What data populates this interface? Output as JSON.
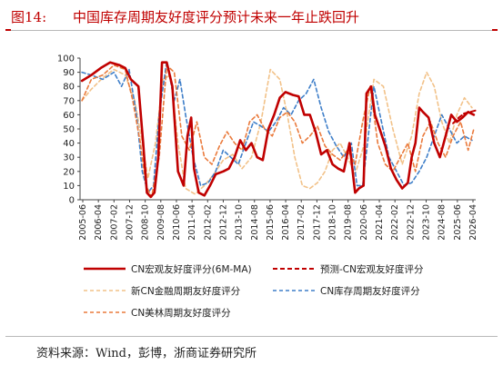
{
  "header": {
    "label": "图14:",
    "title": "中国库存周期友好度评分预计未来一年止跌回升"
  },
  "footer": {
    "source": "资料来源：Wind，彭博，浙商证券研究所"
  },
  "colors": {
    "accent": "#c00000",
    "rule": "#b8b8b8"
  },
  "chart_data": {
    "type": "line",
    "title": "",
    "xlabel": "",
    "ylabel": "",
    "ylim": [
      0,
      100
    ],
    "y_ticks": [
      0,
      10,
      20,
      30,
      40,
      50,
      60,
      70,
      80,
      90,
      100
    ],
    "x_tick_labels": [
      "2005-06",
      "2006-04",
      "2007-02",
      "2007-12",
      "2008-10",
      "2009-08",
      "2010-06",
      "2011-04",
      "2012-02",
      "2012-12",
      "2013-10",
      "2014-08",
      "2015-06",
      "2016-04",
      "2017-02",
      "2017-12",
      "2018-10",
      "2019-08",
      "2020-06",
      "2021-04",
      "2022-02",
      "2022-12",
      "2023-10",
      "2024-08",
      "2025-06",
      "2026-04"
    ],
    "grid": false,
    "legend_position": "bottom",
    "series": [
      {
        "name": "CN宏观友好度评分(6M-MA)",
        "color": "#c00000",
        "style": "solid",
        "width": 2.6,
        "x": [
          2005.5,
          2006.0,
          2006.5,
          2007.0,
          2007.5,
          2007.8,
          2008.1,
          2008.5,
          2008.75,
          2008.95,
          2009.15,
          2009.35,
          2009.55,
          2009.75,
          2010.0,
          2010.3,
          2010.6,
          2010.9,
          2011.1,
          2011.3,
          2011.45,
          2011.7,
          2012.0,
          2012.3,
          2012.6,
          2013.0,
          2013.3,
          2013.6,
          2013.9,
          2014.2,
          2014.5,
          2014.8,
          2015.1,
          2015.4,
          2015.7,
          2016.0,
          2016.3,
          2016.7,
          2017.0,
          2017.3,
          2017.6,
          2017.9,
          2018.2,
          2018.5,
          2018.8,
          2019.1,
          2019.4,
          2019.7,
          2020.0,
          2020.2,
          2020.45,
          2020.6,
          2020.85,
          2021.05,
          2021.3,
          2021.6,
          2021.9,
          2022.2,
          2022.5,
          2022.8,
          2023.0,
          2023.2,
          2023.4,
          2023.6,
          2023.9,
          2024.2,
          2024.5,
          2024.8,
          2025.1,
          2025.4,
          2025.7,
          2026.0,
          2026.3
        ],
        "y": [
          84,
          88,
          93,
          97,
          95,
          93,
          85,
          80,
          40,
          5,
          2,
          5,
          30,
          97,
          97,
          80,
          20,
          10,
          45,
          58,
          22,
          5,
          3,
          10,
          18,
          20,
          22,
          30,
          42,
          35,
          40,
          30,
          28,
          50,
          60,
          72,
          76,
          74,
          73,
          60,
          60,
          48,
          32,
          35,
          25,
          22,
          20,
          40,
          5,
          8,
          10,
          75,
          80,
          60,
          50,
          38,
          22,
          14,
          8,
          12,
          30,
          40,
          65,
          62,
          58,
          40,
          30,
          45,
          60,
          55,
          58,
          62,
          60
        ]
      },
      {
        "name": "预测-CN宏观友好度评分",
        "color": "#c00000",
        "style": "dashed",
        "width": 2.0,
        "x": [
          2025.2,
          2025.5,
          2025.8,
          2026.1,
          2026.4
        ],
        "y": [
          54,
          58,
          61,
          62,
          63
        ]
      },
      {
        "name": "新CN金融周期友好度评分",
        "color": "#f2c289",
        "style": "dashed",
        "width": 1.6,
        "x": [
          2005.5,
          2006.0,
          2006.6,
          2007.2,
          2007.8,
          2008.3,
          2008.7,
          2009.0,
          2009.4,
          2009.8,
          2010.2,
          2010.6,
          2011.0,
          2011.5,
          2012.0,
          2012.5,
          2013.0,
          2013.5,
          2014.0,
          2014.5,
          2015.0,
          2015.5,
          2016.0,
          2016.4,
          2016.8,
          2017.2,
          2017.6,
          2018.0,
          2018.4,
          2018.8,
          2019.2,
          2019.6,
          2020.0,
          2020.5,
          2021.0,
          2021.5,
          2022.0,
          2022.5,
          2023.0,
          2023.4,
          2023.8,
          2024.2,
          2024.6,
          2025.0,
          2025.4,
          2025.8,
          2026.2
        ],
        "y": [
          70,
          78,
          86,
          92,
          88,
          70,
          40,
          15,
          40,
          85,
          88,
          40,
          8,
          4,
          10,
          18,
          28,
          32,
          22,
          30,
          55,
          92,
          85,
          60,
          30,
          10,
          8,
          12,
          20,
          35,
          40,
          30,
          18,
          40,
          85,
          80,
          50,
          25,
          45,
          75,
          90,
          80,
          55,
          40,
          60,
          72,
          65
        ]
      },
      {
        "name": "CN库存周期友好度评分",
        "color": "#3f7fc9",
        "style": "dashed",
        "width": 1.6,
        "x": [
          2005.5,
          2006.0,
          2006.6,
          2007.2,
          2007.6,
          2008.0,
          2008.4,
          2008.7,
          2009.0,
          2009.3,
          2009.6,
          2010.0,
          2010.4,
          2010.7,
          2011.0,
          2011.4,
          2011.8,
          2012.2,
          2012.6,
          2013.0,
          2013.4,
          2013.8,
          2014.2,
          2014.6,
          2015.0,
          2015.4,
          2015.8,
          2016.2,
          2016.6,
          2017.0,
          2017.4,
          2017.8,
          2018.2,
          2018.6,
          2019.0,
          2019.4,
          2019.8,
          2020.1,
          2020.4,
          2020.7,
          2021.0,
          2021.4,
          2021.8,
          2022.2,
          2022.6,
          2023.0,
          2023.4,
          2023.8,
          2024.2,
          2024.6,
          2025.0,
          2025.4,
          2025.8,
          2026.2
        ],
        "y": [
          90,
          88,
          85,
          90,
          80,
          92,
          60,
          20,
          5,
          10,
          60,
          98,
          70,
          85,
          60,
          30,
          10,
          12,
          20,
          35,
          30,
          25,
          40,
          55,
          52,
          48,
          55,
          65,
          60,
          70,
          75,
          85,
          65,
          48,
          38,
          30,
          40,
          10,
          10,
          45,
          80,
          55,
          30,
          20,
          10,
          12,
          20,
          30,
          45,
          60,
          50,
          40,
          45,
          42
        ]
      },
      {
        "name": "CN美林周期友好度评分",
        "color": "#ea7a3c",
        "style": "dashed",
        "width": 1.6,
        "x": [
          2005.5,
          2006.0,
          2006.6,
          2007.2,
          2007.8,
          2008.2,
          2008.6,
          2008.9,
          2009.2,
          2009.6,
          2010.0,
          2010.4,
          2010.8,
          2011.2,
          2011.6,
          2012.0,
          2012.4,
          2012.8,
          2013.2,
          2013.6,
          2014.0,
          2014.4,
          2014.8,
          2015.2,
          2015.6,
          2016.0,
          2016.4,
          2016.8,
          2017.2,
          2017.6,
          2018.0,
          2018.4,
          2018.8,
          2019.2,
          2019.6,
          2020.0,
          2020.4,
          2020.8,
          2021.2,
          2021.6,
          2022.0,
          2022.4,
          2022.8,
          2023.2,
          2023.6,
          2024.0,
          2024.4,
          2024.8,
          2025.2,
          2025.6,
          2026.0,
          2026.3
        ],
        "y": [
          70,
          85,
          88,
          95,
          92,
          70,
          40,
          10,
          2,
          30,
          95,
          90,
          45,
          35,
          55,
          30,
          25,
          38,
          48,
          40,
          35,
          55,
          60,
          50,
          45,
          58,
          62,
          55,
          40,
          45,
          52,
          38,
          32,
          28,
          35,
          25,
          55,
          80,
          40,
          25,
          20,
          30,
          40,
          20,
          45,
          55,
          40,
          30,
          45,
          55,
          35,
          50
        ]
      }
    ]
  }
}
